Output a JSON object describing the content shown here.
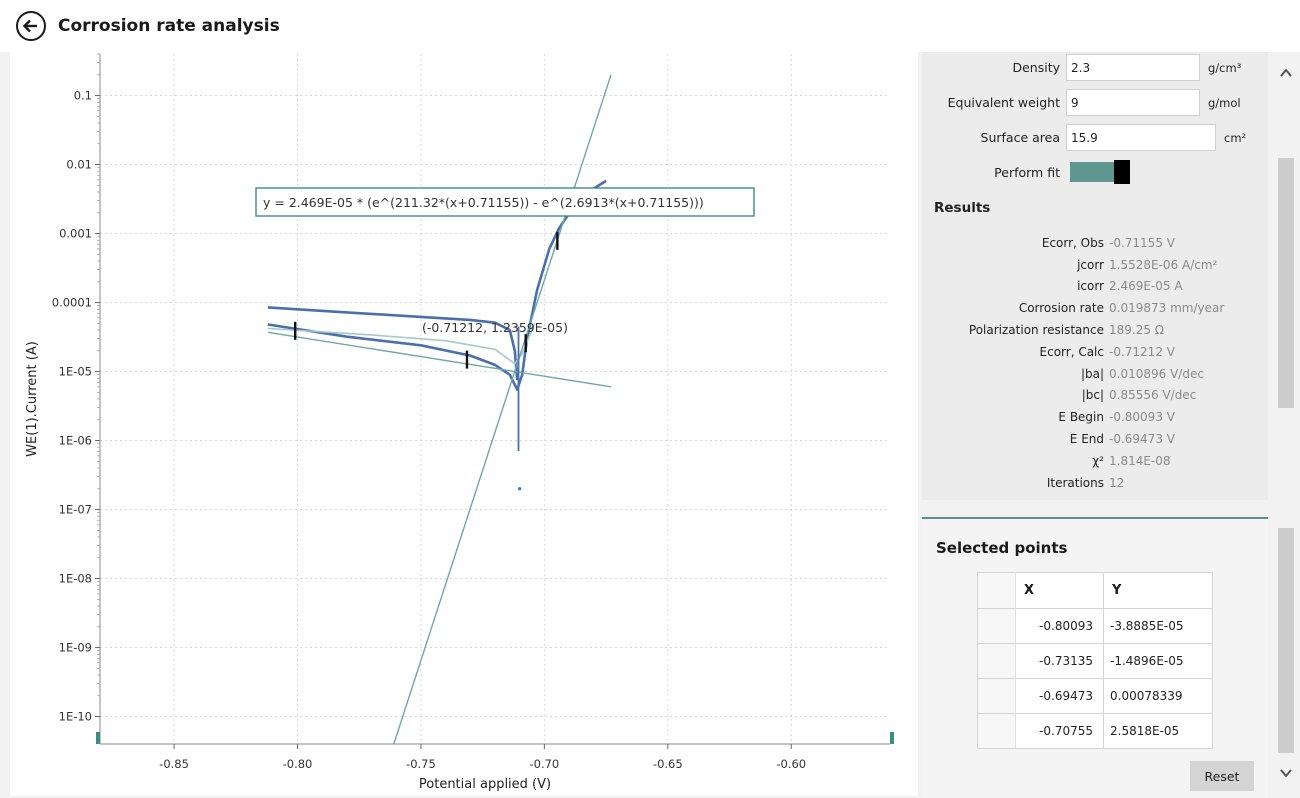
{
  "header": {
    "title": "Corrosion rate analysis",
    "back_icon": "arrow-left-icon"
  },
  "parameters": {
    "density": {
      "label": "Density",
      "value": "2.3",
      "unit": "g/cm³"
    },
    "equivalent_weight": {
      "label": "Equivalent weight",
      "value": "9",
      "unit": "g/mol"
    },
    "surface_area": {
      "label": "Surface area",
      "value": "15.9",
      "unit": "cm²"
    },
    "perform_fit": {
      "label": "Perform fit",
      "on": true
    }
  },
  "results": {
    "heading": "Results",
    "items": [
      {
        "label": "Ecorr, Obs",
        "value": "-0.71155 V"
      },
      {
        "label": "jcorr",
        "value": "1.5528E-06 A/cm²"
      },
      {
        "label": "icorr",
        "value": "2.469E-05 A"
      },
      {
        "label": "Corrosion rate",
        "value": "0.019873 mm/year"
      },
      {
        "label": "Polarization resistance",
        "value": "189.25 Ω"
      },
      {
        "label": "Ecorr, Calc",
        "value": "-0.71212 V"
      },
      {
        "label": "|ba|",
        "value": "0.010896 V/dec"
      },
      {
        "label": "|bc|",
        "value": "0.85556 V/dec"
      },
      {
        "label": "E Begin",
        "value": "-0.80093 V"
      },
      {
        "label": "E End",
        "value": "-0.69473 V"
      },
      {
        "label": "χ²",
        "value": "1.814E-08"
      },
      {
        "label": "Iterations",
        "value": "12"
      }
    ]
  },
  "selected_points": {
    "heading": "Selected points",
    "columns": [
      "X",
      "Y"
    ],
    "rows": [
      [
        "-0.80093",
        "-3.8885E-05"
      ],
      [
        "-0.73135",
        "-1.4896E-05"
      ],
      [
        "-0.69473",
        "0.00078339"
      ],
      [
        "-0.70755",
        "2.5818E-05"
      ]
    ],
    "reset_label": "Reset"
  },
  "chart": {
    "fit_equation": "y = 2.469E-05 * (e^(211.32*(x+0.71155)) - e^(2.6913*(x+0.71155)))",
    "annotation": "(-0.71212, 1.2359E-05)"
  },
  "chart_data": {
    "type": "line",
    "xlabel": "Potential applied (V)",
    "ylabel": "WE(1).Current (A)",
    "xlim": [
      -0.88,
      -0.56
    ],
    "ylim": [
      4e-11,
      0.4
    ],
    "y_scale": "log",
    "x_ticks": [
      "-0.85",
      "-0.80",
      "-0.75",
      "-0.70",
      "-0.65",
      "-0.60"
    ],
    "x_tick_values": [
      -0.85,
      -0.8,
      -0.75,
      -0.7,
      -0.65,
      -0.6
    ],
    "y_ticks": [
      "0.1",
      "0.01",
      "0.001",
      "0.0001",
      "1E-05",
      "1E-06",
      "1E-07",
      "1E-08",
      "1E-09",
      "1E-10"
    ],
    "y_tick_values": [
      0.1,
      0.01,
      0.001,
      0.0001,
      1e-05,
      1e-06,
      1e-07,
      1e-08,
      1e-09,
      1e-10
    ],
    "grid": true,
    "colors": {
      "data": "#4a6fb0",
      "fit": "#6fa7a5",
      "smooth": "#a8c8c6",
      "annotation_box": "#3b8e7e"
    },
    "series": [
      {
        "role": "data-forward",
        "points": [
          [
            -0.812,
            8.5e-05
          ],
          [
            -0.78,
            7.2e-05
          ],
          [
            -0.75,
            6.2e-05
          ],
          [
            -0.73,
            5.6e-05
          ],
          [
            -0.72,
            5.1e-05
          ],
          [
            -0.714,
            4e-05
          ],
          [
            -0.712,
            2e-05
          ],
          [
            -0.711,
            7.5e-06
          ]
        ]
      },
      {
        "role": "data-reverse",
        "points": [
          [
            -0.812,
            4.8e-05
          ],
          [
            -0.78,
            3.2e-05
          ],
          [
            -0.75,
            2.4e-05
          ],
          [
            -0.73,
            1.7e-05
          ],
          [
            -0.72,
            1.25e-05
          ],
          [
            -0.714,
            9e-06
          ],
          [
            -0.711,
            5.5e-06
          ],
          [
            -0.709,
            9e-06
          ],
          [
            -0.707,
            3e-05
          ],
          [
            -0.703,
            0.00015
          ],
          [
            -0.698,
            0.0006
          ],
          [
            -0.694,
            0.0012
          ],
          [
            -0.688,
            0.0025
          ],
          [
            -0.68,
            0.0045
          ],
          [
            -0.675,
            0.0058
          ]
        ]
      },
      {
        "role": "smoothed",
        "points": [
          [
            -0.812,
            4.2e-05
          ],
          [
            -0.77,
            3.4e-05
          ],
          [
            -0.74,
            2.8e-05
          ],
          [
            -0.72,
            2.1e-05
          ],
          [
            -0.712,
            1.3e-05
          ],
          [
            -0.709,
            1.8e-05
          ],
          [
            -0.704,
            5e-05
          ]
        ]
      },
      {
        "role": "anodic-tafel",
        "points": [
          [
            -0.761,
            4e-11
          ],
          [
            -0.673,
            0.2
          ]
        ]
      },
      {
        "role": "cathodic-tafel",
        "points": [
          [
            -0.812,
            3.7e-05
          ],
          [
            -0.673,
            6e-06
          ]
        ]
      },
      {
        "role": "spike",
        "points": [
          [
            -0.7105,
            4.5e-05
          ],
          [
            -0.7105,
            7e-07
          ]
        ]
      }
    ],
    "markers": [
      [
        -0.80093,
        3.8885e-05
      ],
      [
        -0.73135,
        1.4896e-05
      ],
      [
        -0.69473,
        0.00078339
      ],
      [
        -0.70755,
        2.5818e-05
      ]
    ],
    "outliers": [
      [
        -0.71,
        2e-07
      ]
    ]
  }
}
